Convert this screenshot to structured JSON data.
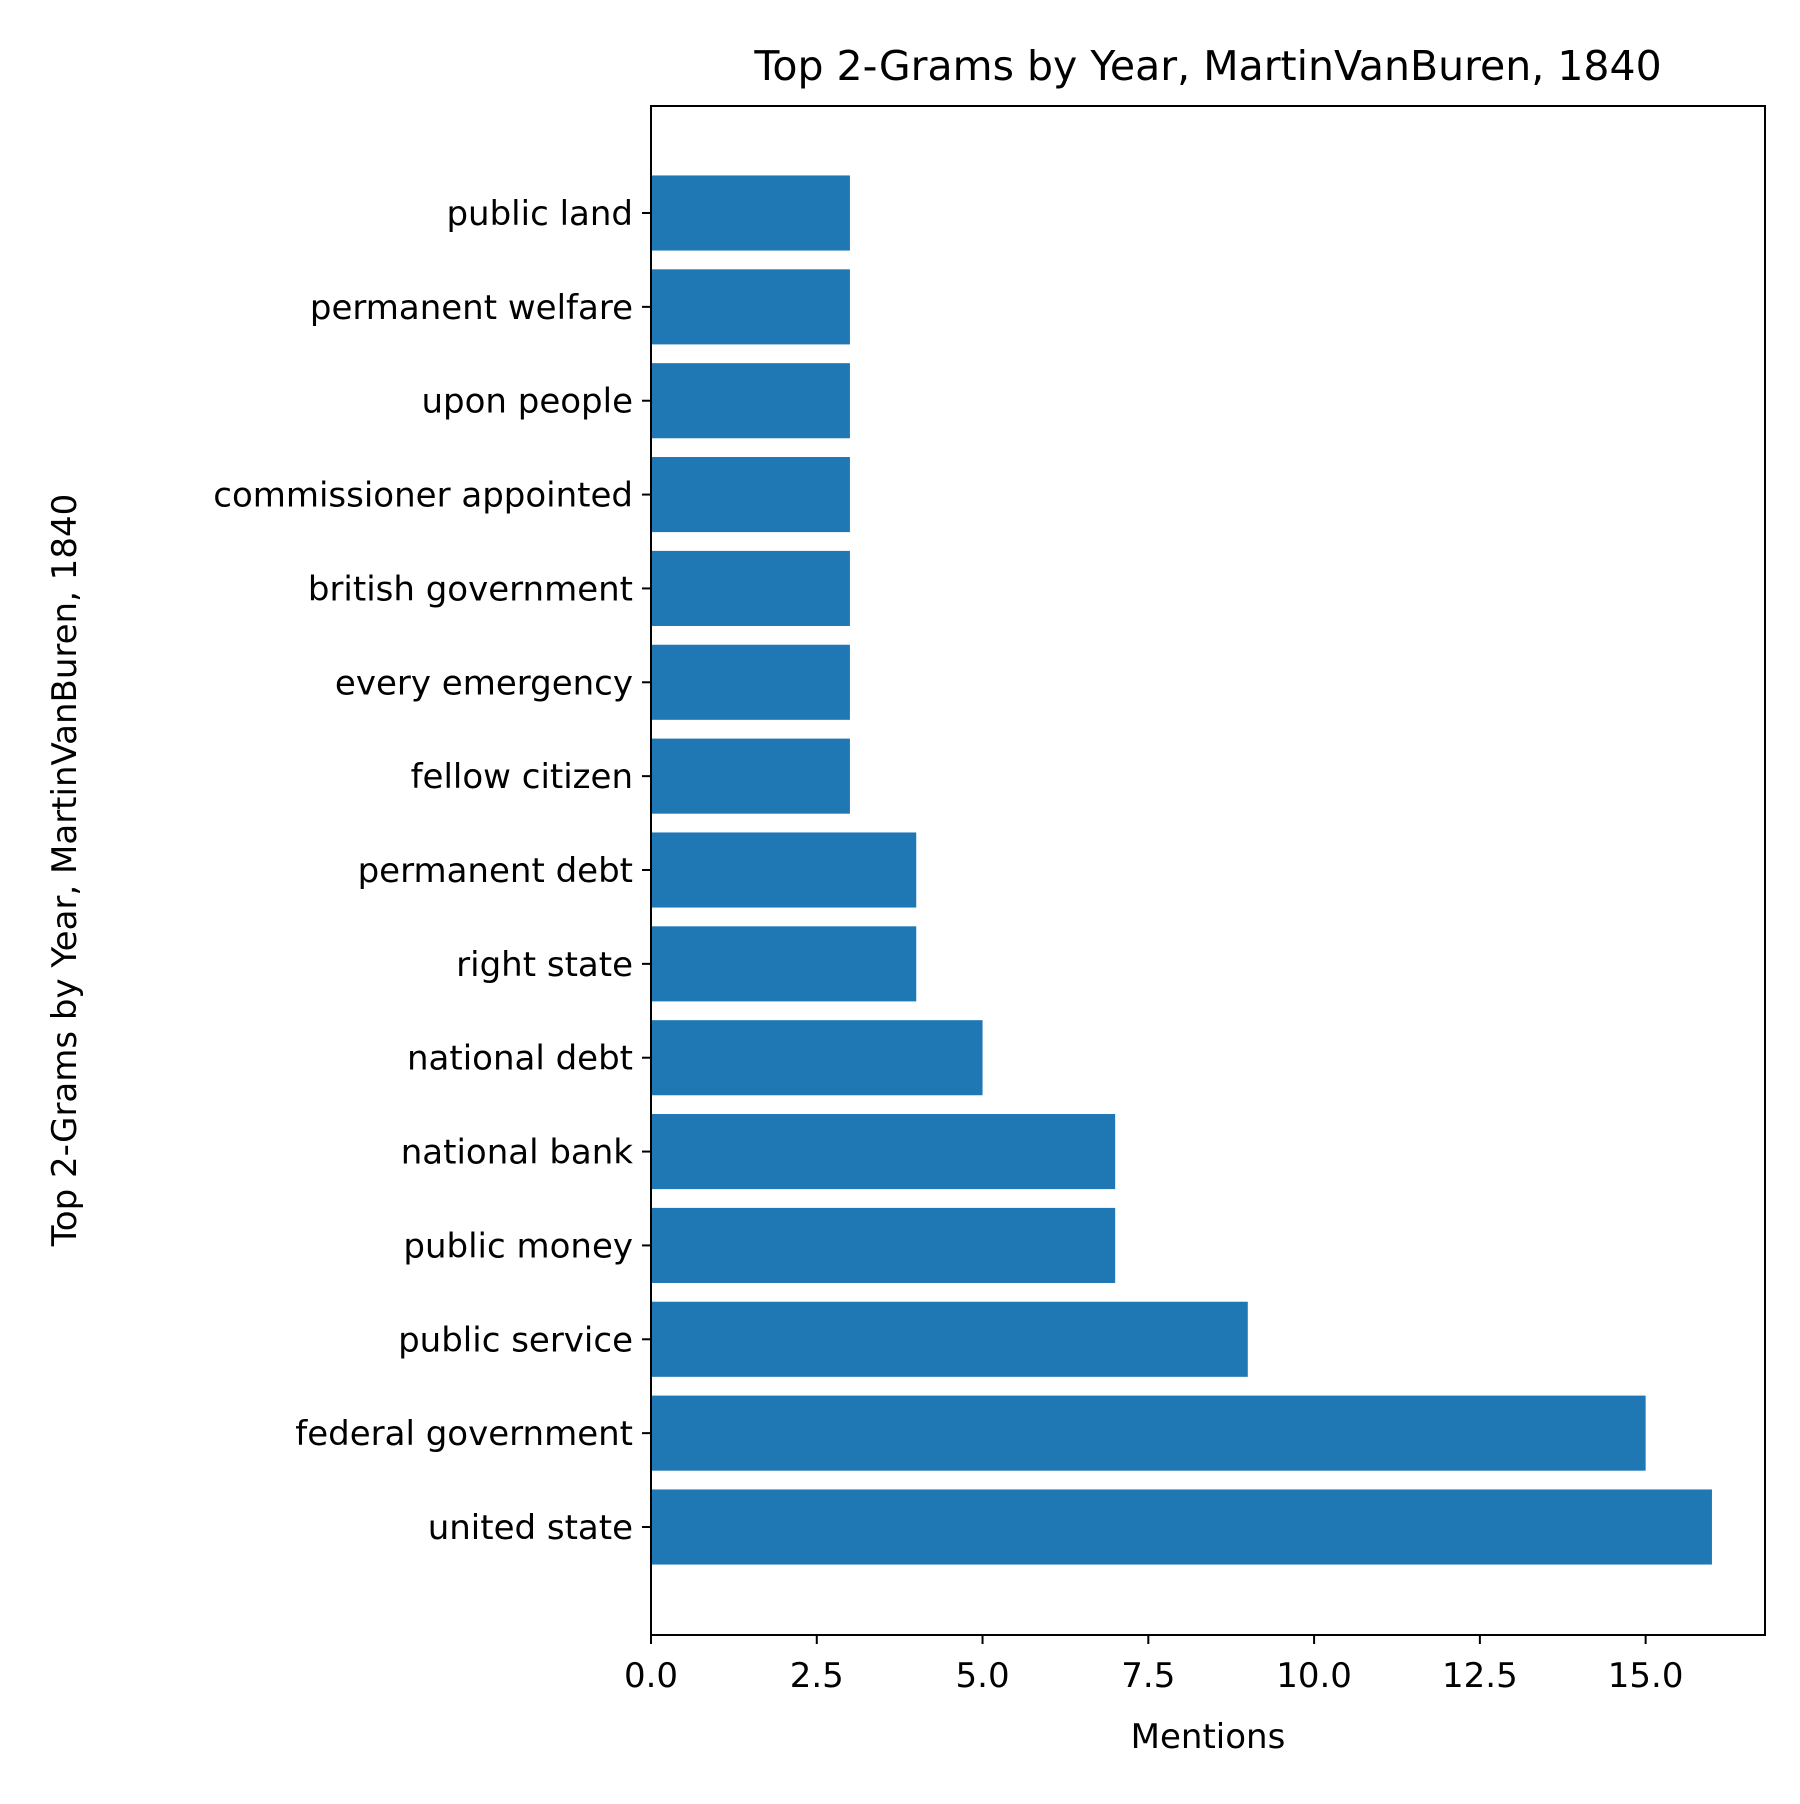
{
  "chart_data": {
    "type": "bar",
    "orientation": "horizontal",
    "title": "Top 2-Grams by Year, MartinVanBuren, 1840",
    "xlabel": "Mentions",
    "ylabel": "Top 2-Grams by Year, MartinVanBuren, 1840",
    "categories": [
      "united state",
      "federal government",
      "public service",
      "public money",
      "national bank",
      "national debt",
      "right state",
      "permanent debt",
      "fellow citizen",
      "every emergency",
      "british government",
      "commissioner appointed",
      "upon people",
      "permanent welfare",
      "public land"
    ],
    "values": [
      16,
      15,
      9,
      7,
      7,
      5,
      4,
      4,
      3,
      3,
      3,
      3,
      3,
      3,
      3
    ],
    "xlim": [
      0,
      16.8
    ],
    "xticks": [
      "0.0",
      "2.5",
      "5.0",
      "7.5",
      "10.0",
      "12.5",
      "15.0"
    ],
    "grid": false,
    "bar_color": "#1f77b4"
  }
}
